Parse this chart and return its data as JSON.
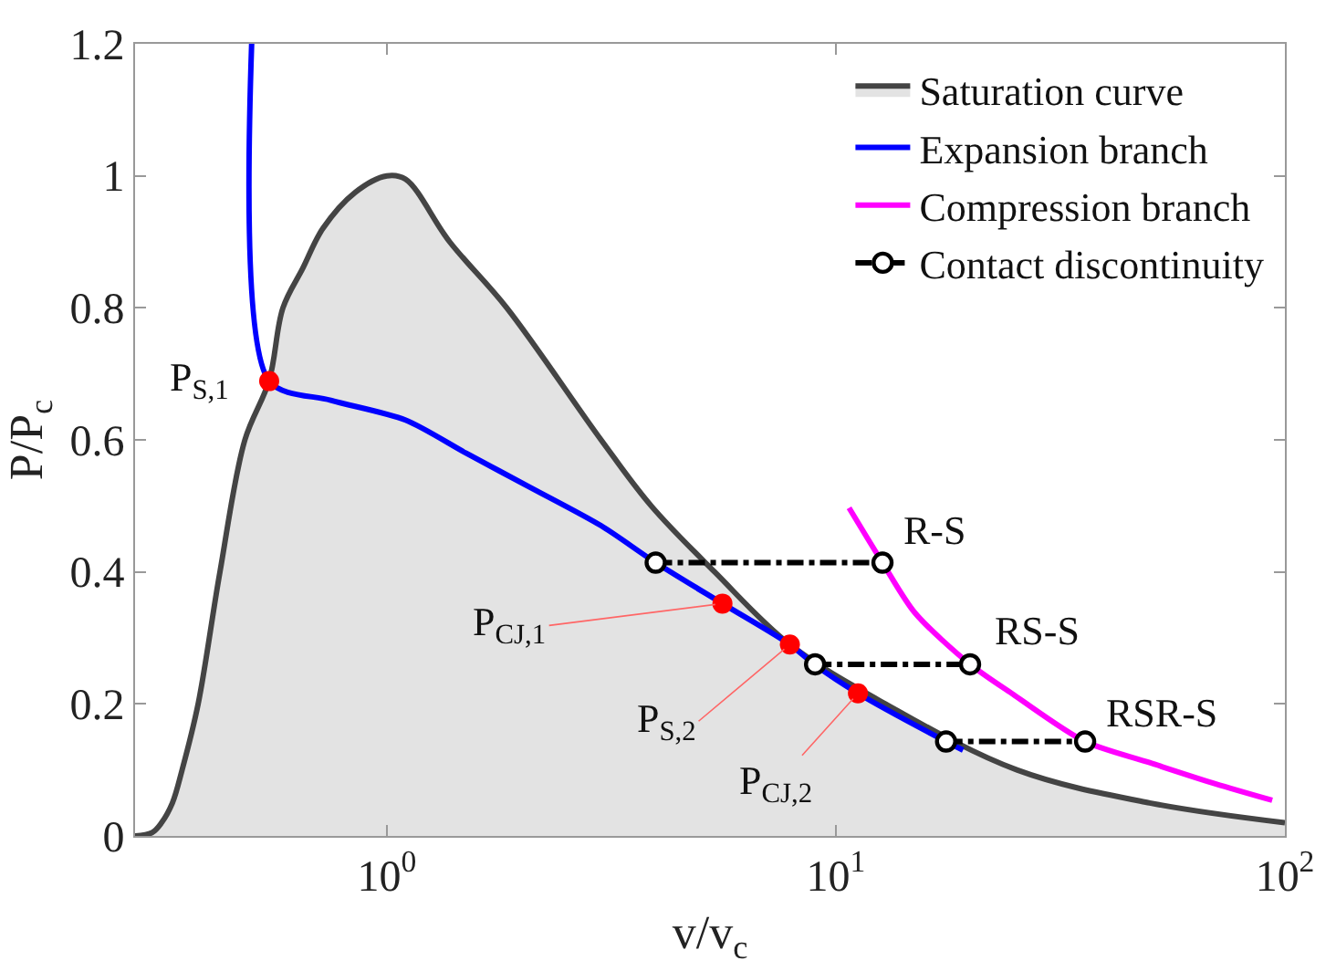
{
  "chart_data": {
    "type": "line",
    "xlabel": "v/v$_{c}$",
    "ylabel": "P/P$_{c}$",
    "log": "x",
    "grid": false,
    "legend": "top right",
    "xlim": [
      0.275,
      100
    ],
    "xticks": [
      {
        "value": 1,
        "label": "10$^{0}$"
      },
      {
        "value": 10,
        "label": "10$^{1}$"
      },
      {
        "value": 100,
        "label": "10$^{2}$"
      }
    ],
    "ylim": [
      0,
      1.2
    ],
    "yticks": [
      0,
      0.2,
      0.4,
      0.6,
      0.8,
      1,
      1.2
    ],
    "series": [
      {
        "name": "Saturation curve",
        "type": "area",
        "color": "#444444",
        "x": [
          0.275,
          0.3,
          0.315,
          0.333,
          0.35,
          0.38,
          0.425,
          0.483,
          0.547,
          0.587,
          0.65,
          0.72,
          0.85,
          1,
          1.1,
          1.38,
          1.85,
          3.0,
          3.88,
          5.37,
          7.9,
          12.9,
          25.3,
          50,
          100
        ],
        "values": [
          0,
          0.005,
          0.02,
          0.05,
          0.1,
          0.2,
          0.4,
          0.6,
          0.69,
          0.8,
          0.86,
          0.92,
          0.975,
          1,
          0.995,
          0.9,
          0.8,
          0.6,
          0.5,
          0.4,
          0.29,
          0.2,
          0.1,
          0.05,
          0.02
        ]
      },
      {
        "name": "Expansion branch",
        "color": "#0000ff",
        "x": [
          0.5,
          0.547,
          0.75,
          1.1,
          1.5,
          2.1,
          3.0,
          3.97,
          5.59,
          7.9,
          8.99,
          11.2,
          17.6,
          19.2
        ],
        "values": [
          1.2,
          0.689,
          0.66,
          0.63,
          0.58,
          0.527,
          0.47,
          0.414,
          0.352,
          0.29,
          0.259,
          0.216,
          0.143,
          0.13
        ]
      },
      {
        "name": "Compression branch",
        "color": "#ff00ff",
        "x": [
          10.7,
          12.7,
          15,
          19.9,
          25,
          35.9,
          50,
          70,
          93.7
        ],
        "values": [
          0.497,
          0.414,
          0.338,
          0.26,
          0.213,
          0.143,
          0.111,
          0.079,
          0.054
        ]
      },
      {
        "name": "Contact discontinuity",
        "type": "line",
        "color": "#000000",
        "marker": "circle",
        "line_style": "dashdot",
        "x": [
          3.97,
          12.7,
          null,
          8.99,
          19.9,
          null,
          17.6,
          35.9
        ],
        "values": [
          0.414,
          0.414,
          null,
          0.26,
          0.26,
          null,
          0.143,
          0.143
        ]
      },
      {
        "type": "scatter",
        "color": "#ff0000",
        "marker": "circle",
        "x": [
          0.547,
          5.59,
          7.9,
          11.2
        ],
        "values": [
          0.689,
          0.352,
          0.29,
          0.216
        ]
      }
    ],
    "annotations": [
      {
        "text": "P$_{S,1}$",
        "x": 0.547,
        "y": 0.689
      },
      {
        "text": "P$_{CJ,1}$",
        "x": 5.59,
        "y": 0.352
      },
      {
        "text": "P$_{S,2}$",
        "x": 7.9,
        "y": 0.29
      },
      {
        "text": "P$_{CJ,2}$",
        "x": 11.2,
        "y": 0.216
      },
      {
        "text": "R-S",
        "x": 12.7,
        "y": 0.414
      },
      {
        "text": "RS-S",
        "x": 19.9,
        "y": 0.26
      },
      {
        "text": "RSR-S",
        "x": 35.9,
        "y": 0.143
      }
    ]
  }
}
